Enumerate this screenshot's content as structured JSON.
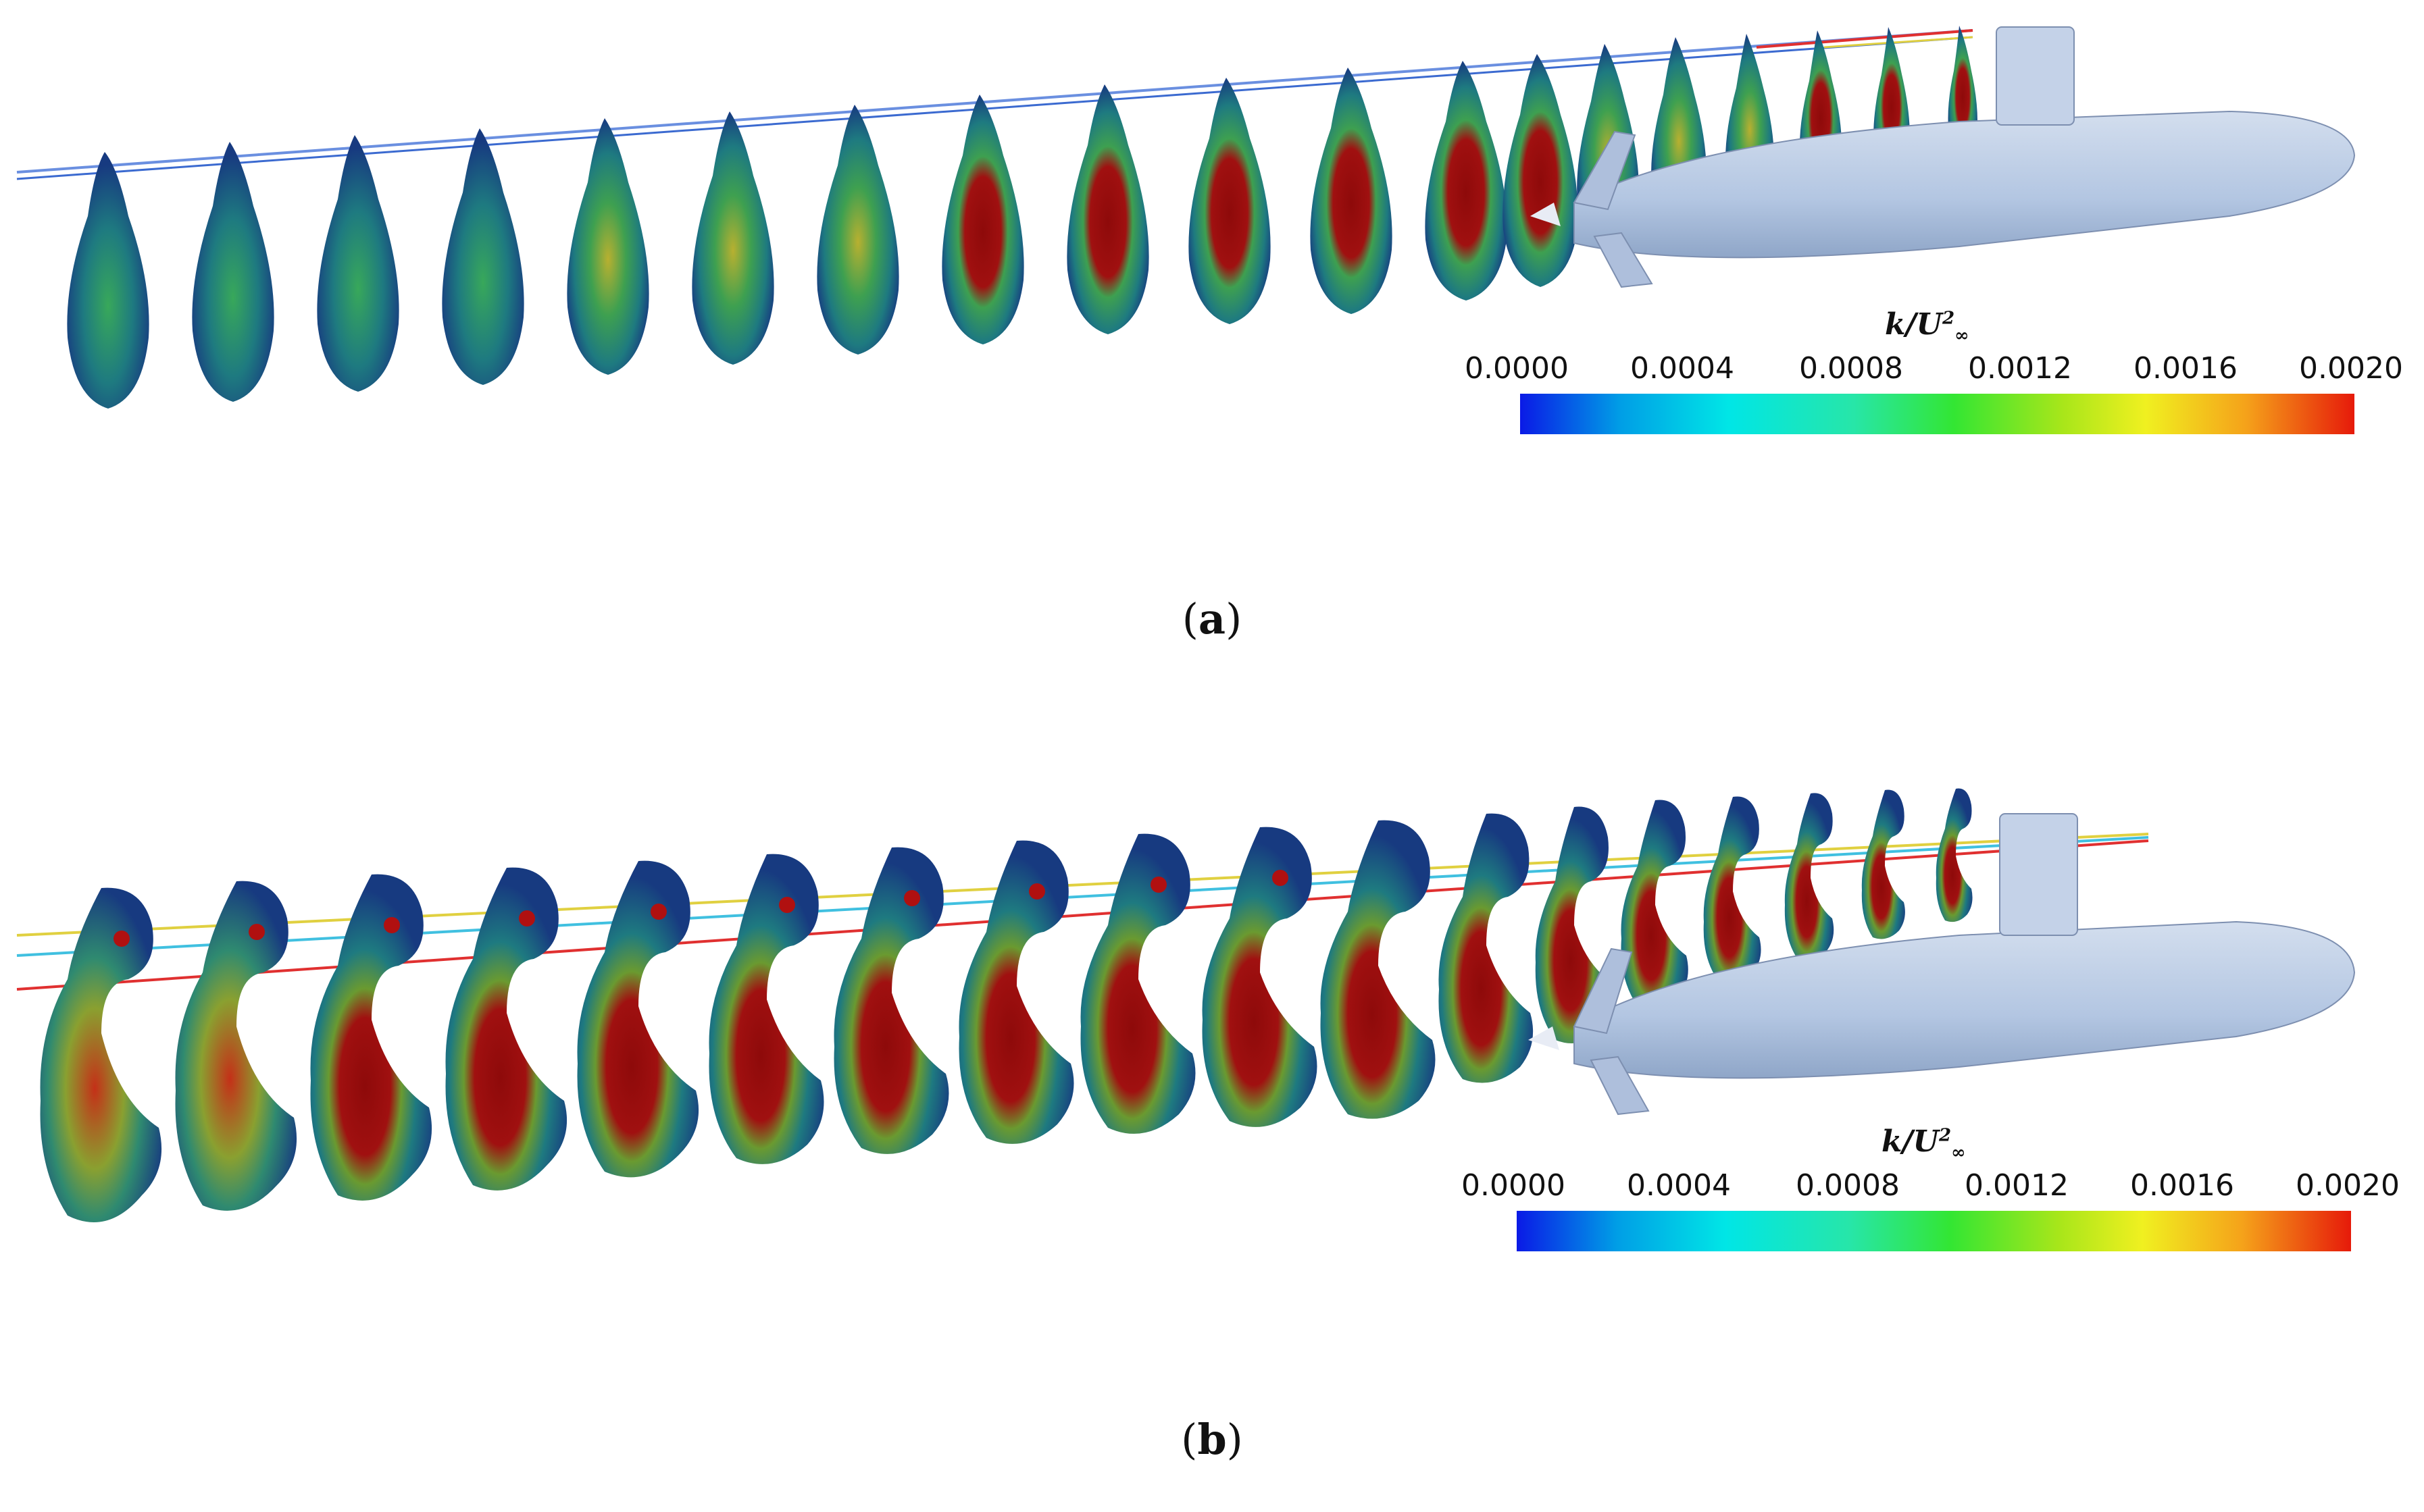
{
  "figure": {
    "panels": [
      {
        "id": "a",
        "caption": "a",
        "colorbar": {
          "title": "k/U",
          "title_sup": "2",
          "title_sub": "∞",
          "ticks": [
            "0.0000",
            "0.0004",
            "0.0008",
            "0.0012",
            "0.0016",
            "0.0020"
          ]
        }
      },
      {
        "id": "b",
        "caption": "b",
        "colorbar": {
          "title": "k/U",
          "title_sup": "2",
          "title_sub": "∞",
          "ticks": [
            "0.0000",
            "0.0004",
            "0.0008",
            "0.0012",
            "0.0016",
            "0.0020"
          ]
        }
      }
    ],
    "colors": {
      "hull": "#b3c6e2",
      "wake_low": "#15327e",
      "wake_mid": "#2fa05a",
      "wake_high": "#8e0a0a"
    }
  }
}
